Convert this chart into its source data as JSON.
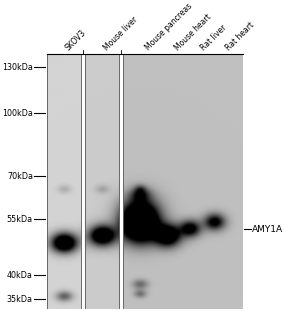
{
  "lane_labels": [
    "SKOV3",
    "Mouse liver",
    "Mouse pancreas",
    "Mouse heart",
    "Rat liver",
    "Rat heart"
  ],
  "mw_labels": [
    "130kDa",
    "100kDa",
    "70kDa",
    "55kDa",
    "40kDa",
    "35kDa"
  ],
  "mw_values": [
    130,
    100,
    70,
    55,
    40,
    35
  ],
  "annotation": "AMY1A",
  "panel1_color": "#d4d4d4",
  "panel2_color": "#cccccc",
  "panel3_color": "#c0c0c0",
  "figure_bg": "#ffffff",
  "band_color": "#111111",
  "mw_min": 33,
  "mw_max": 140
}
